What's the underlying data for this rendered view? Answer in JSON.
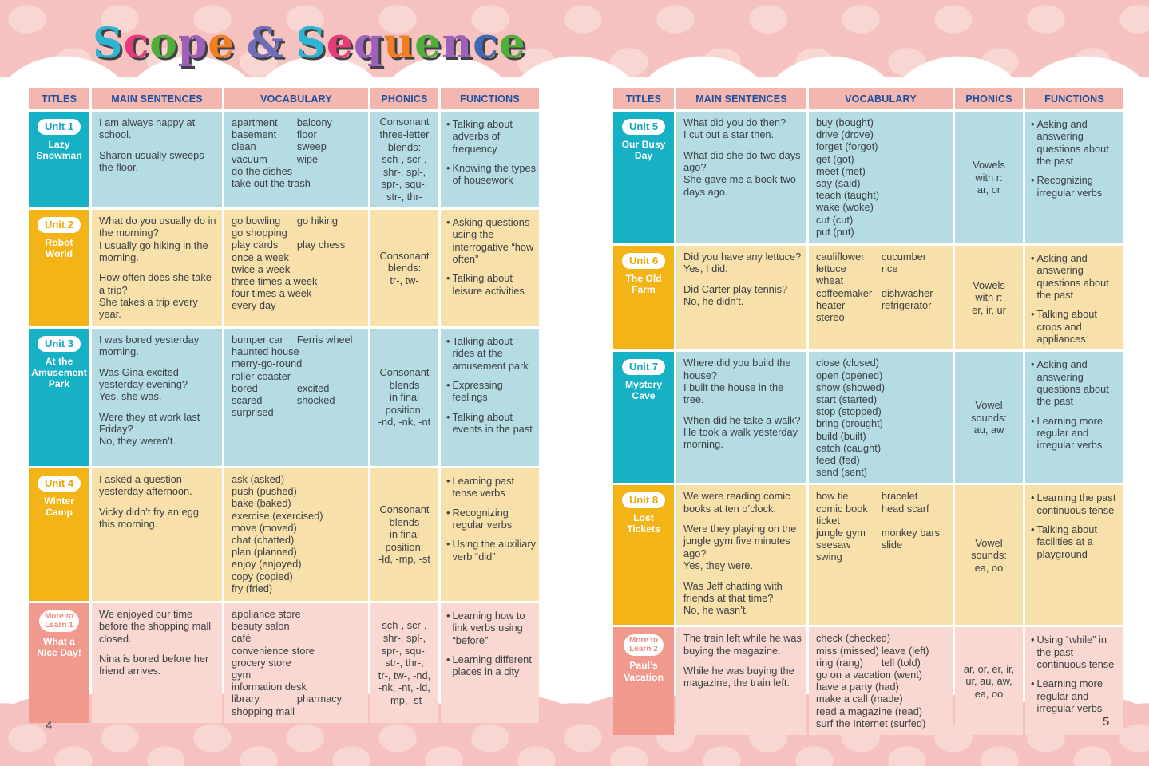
{
  "page_title": {
    "text": "Scope & Sequence",
    "letters": [
      {
        "ch": "S",
        "color": "#2db4d3"
      },
      {
        "ch": "c",
        "color": "#e73a78"
      },
      {
        "ch": "o",
        "color": "#4fae3c"
      },
      {
        "ch": "p",
        "color": "#9c61b8"
      },
      {
        "ch": "e",
        "color": "#f07f23"
      },
      {
        "ch": " "
      },
      {
        "ch": "&",
        "color": "#6f6db8"
      },
      {
        "ch": " "
      },
      {
        "ch": "S",
        "color": "#2db4d3"
      },
      {
        "ch": "e",
        "color": "#e73a78"
      },
      {
        "ch": "q",
        "color": "#9c61b8"
      },
      {
        "ch": "u",
        "color": "#f07f23"
      },
      {
        "ch": "e",
        "color": "#4fae3c"
      },
      {
        "ch": "n",
        "color": "#9c61b8"
      },
      {
        "ch": "c",
        "color": "#3c6ab4"
      },
      {
        "ch": "e",
        "color": "#4fae3c"
      }
    ]
  },
  "palette": {
    "background_pink": "#f5c2c0",
    "dot_pink": "#f8d6d2",
    "header_bg": "#f4b7b0",
    "header_text": "#1d4e9e",
    "teal": "#17b1c5",
    "teal_light": "#b5dbe3",
    "gold": "#f3b418",
    "gold_light": "#f8e0ab",
    "salmon": "#f2998e",
    "salmon_light": "#f8d8d0",
    "body_text": "#3c4043"
  },
  "pages": [
    {
      "page_number": "4",
      "column_headers": [
        "TITLES",
        "MAIN SENTENCES",
        "VOCABULARY",
        "PHONICS",
        "FUNCTIONS"
      ],
      "rows": [
        {
          "unit_label": "Unit 1",
          "unit_title": "Lazy\nSnowman",
          "theme": "teal",
          "min_height": 120,
          "main_sentences": [
            [
              "I am always happy at school."
            ],
            [
              "Sharon usually sweeps the floor."
            ]
          ],
          "vocabulary": [
            [
              "apartment",
              "balcony"
            ],
            [
              "basement",
              "floor"
            ],
            [
              "clean",
              "sweep"
            ],
            [
              "vacuum",
              "wipe"
            ],
            [
              "do the dishes"
            ],
            [
              "take out the trash"
            ]
          ],
          "phonics": "Consonant\nthree-letter\nblends:\nsch-, scr-,\nshr-, spl-,\nspr-, squ-,\nstr-, thr-",
          "functions": [
            "Talking about adverbs of frequency",
            "Knowing the types of housework"
          ]
        },
        {
          "unit_label": "Unit 2",
          "unit_title": "Robot\nWorld",
          "theme": "gold",
          "min_height": 146,
          "main_sentences": [
            [
              "What do you usually do in the morning?",
              "I usually go hiking in the morning."
            ],
            [
              "How often does she take a trip?",
              "She takes a trip every year."
            ]
          ],
          "vocabulary": [
            [
              "go bowling",
              "go hiking"
            ],
            [
              "go shopping"
            ],
            [
              "play cards",
              "play chess"
            ],
            [
              "once a week"
            ],
            [
              "twice a week"
            ],
            [
              "three times a week"
            ],
            [
              "four times a week"
            ],
            [
              "every day"
            ]
          ],
          "phonics": "Consonant\nblends:\ntr-, tw-",
          "functions": [
            "Asking questions using the interrogative “how often”",
            "Talking about leisure activities"
          ]
        },
        {
          "unit_label": "Unit 3",
          "unit_title": "At the\nAmusement\nPark",
          "theme": "teal",
          "min_height": 172,
          "main_sentences": [
            [
              "I was bored yesterday morning."
            ],
            [
              "Was Gina excited yesterday evening?",
              "Yes, she was."
            ],
            [
              "Were they at work last Friday?",
              "No, they weren’t."
            ]
          ],
          "vocabulary": [
            [
              "bumper car",
              "Ferris wheel"
            ],
            [
              "haunted house"
            ],
            [
              "merry-go-round"
            ],
            [
              "roller coaster"
            ],
            [
              "bored",
              "excited"
            ],
            [
              "scared",
              "shocked"
            ],
            [
              "surprised"
            ]
          ],
          "phonics": "Consonant\nblends\nin final\nposition:\n-nd, -nk, -nt",
          "functions": [
            "Talking about rides at the amusement park",
            "Expressing feelings",
            "Talking about events in the past"
          ]
        },
        {
          "unit_label": "Unit 4",
          "unit_title": "Winter\nCamp",
          "theme": "gold",
          "min_height": 166,
          "main_sentences": [
            [
              "I asked a question yesterday afternoon."
            ],
            [
              "Vicky didn’t fry an egg this morning."
            ]
          ],
          "vocabulary": [
            [
              "ask (asked)"
            ],
            [
              "push (pushed)"
            ],
            [
              "bake (baked)"
            ],
            [
              "exercise (exercised)"
            ],
            [
              "move (moved)"
            ],
            [
              "chat (chatted)"
            ],
            [
              "plan (planned)"
            ],
            [
              "enjoy (enjoyed)"
            ],
            [
              "copy (copied)"
            ],
            [
              "fry (fried)"
            ]
          ],
          "phonics": "Consonant\nblends\nin final\nposition:\n-ld, -mp, -st",
          "functions": [
            "Learning past tense verbs",
            "Recognizing regular verbs",
            "Using the auxiliary verb “did”"
          ]
        },
        {
          "unit_label": "More to\nLearn 1",
          "unit_title": "What a\nNice Day!",
          "theme": "salmon",
          "min_height": 150,
          "main_sentences": [
            [
              "We enjoyed our time before the shopping mall closed."
            ],
            [
              "Nina is bored before her friend arrives."
            ]
          ],
          "vocabulary": [
            [
              "appliance store"
            ],
            [
              "beauty salon"
            ],
            [
              "café"
            ],
            [
              "convenience store"
            ],
            [
              "grocery store"
            ],
            [
              "gym"
            ],
            [
              "information desk"
            ],
            [
              "library",
              "pharmacy"
            ],
            [
              "shopping mall"
            ]
          ],
          "phonics": "sch-, scr-,\nshr-, spl-,\nspr-, squ-,\nstr-, thr-,\ntr-, tw-, -nd,\n-nk, -nt, -ld,\n-mp, -st",
          "functions": [
            "Learning how to link verbs using “before”",
            "Learning different places in a city"
          ]
        }
      ]
    },
    {
      "page_number": "5",
      "column_headers": [
        "TITLES",
        "MAIN SENTENCES",
        "VOCABULARY",
        "PHONICS",
        "FUNCTIONS"
      ],
      "rows": [
        {
          "unit_label": "Unit 5",
          "unit_title": "Our Busy\nDay",
          "theme": "teal",
          "min_height": 165,
          "main_sentences": [
            [
              "What did you do then?",
              "I cut out a star then."
            ],
            [
              "What did she do two days ago?",
              "She gave me a book two days ago."
            ]
          ],
          "vocabulary": [
            [
              "buy (bought)"
            ],
            [
              "drive (drove)"
            ],
            [
              "forget (forgot)"
            ],
            [
              "get (got)"
            ],
            [
              "meet (met)"
            ],
            [
              "say (said)"
            ],
            [
              "teach (taught)"
            ],
            [
              "wake (woke)"
            ],
            [
              "cut (cut)"
            ],
            [
              "put (put)"
            ]
          ],
          "phonics": "Vowels\nwith r:\nar, or",
          "functions": [
            "Asking and answering questions about the past",
            "Recognizing irregular verbs"
          ]
        },
        {
          "unit_label": "Unit 6",
          "unit_title": "The Old\nFarm",
          "theme": "gold",
          "min_height": 124,
          "main_sentences": [
            [
              "Did you have any lettuce?",
              "Yes, I did."
            ],
            [
              "Did Carter play tennis?",
              "No, he didn’t."
            ]
          ],
          "vocabulary": [
            [
              "cauliflower",
              "cucumber"
            ],
            [
              "lettuce",
              "rice"
            ],
            [
              "wheat"
            ],
            [
              "coffeemaker",
              "dishwasher"
            ],
            [
              "heater",
              "refrigerator"
            ],
            [
              "stereo"
            ]
          ],
          "phonics": "Vowels\nwith r:\ner, ir, ur",
          "functions": [
            "Asking and answering questions about the past",
            "Talking about crops and appliances"
          ]
        },
        {
          "unit_label": "Unit 7",
          "unit_title": "Mystery\nCave",
          "theme": "teal",
          "min_height": 155,
          "main_sentences": [
            [
              "Where did you build the house?",
              "I built the house in the tree."
            ],
            [
              "When did he take a walk?",
              "He took a walk yesterday morning."
            ]
          ],
          "vocabulary": [
            [
              "close (closed)"
            ],
            [
              "open (opened)"
            ],
            [
              "show (showed)"
            ],
            [
              "start (started)"
            ],
            [
              "stop (stopped)"
            ],
            [
              "bring (brought)"
            ],
            [
              "build (built)"
            ],
            [
              "catch (caught)"
            ],
            [
              "feed (fed)"
            ],
            [
              "send (sent)"
            ]
          ],
          "phonics": "Vowel\nsounds:\nau, aw",
          "functions": [
            "Asking and answering questions about the past",
            "Learning more regular and irregular verbs"
          ]
        },
        {
          "unit_label": "Unit 8",
          "unit_title": "Lost\nTickets",
          "theme": "gold",
          "min_height": 175,
          "main_sentences": [
            [
              "We were reading comic books at ten o’clock."
            ],
            [
              "Were they playing on the jungle gym five minutes ago?",
              "Yes, they were."
            ],
            [
              "Was Jeff chatting with friends at that time?",
              "No, he wasn’t."
            ]
          ],
          "vocabulary": [
            [
              "bow tie",
              "bracelet"
            ],
            [
              "comic book",
              "head scarf"
            ],
            [
              "ticket"
            ],
            [
              "jungle gym",
              "monkey bars"
            ],
            [
              "seesaw",
              "slide"
            ],
            [
              "swing"
            ]
          ],
          "phonics": "Vowel\nsounds:\nea, oo",
          "functions": [
            "Learning the past continuous tense",
            "Talking about facilities at a playground"
          ]
        },
        {
          "unit_label": "More to\nLearn 2",
          "unit_title": "Paul’s\nVacation",
          "theme": "salmon",
          "min_height": 135,
          "main_sentences": [
            [
              "The train left while he was buying the magazine."
            ],
            [
              "While he was buying the magazine, the train left."
            ]
          ],
          "vocabulary": [
            [
              "check (checked)"
            ],
            [
              "miss (missed)",
              "leave (left)"
            ],
            [
              "ring (rang)",
              "tell (told)"
            ],
            [
              "go on a vacation (went)"
            ],
            [
              "have a party (had)"
            ],
            [
              "make a call (made)"
            ],
            [
              "read a magazine (read)"
            ],
            [
              "surf the Internet (surfed)"
            ]
          ],
          "phonics": "ar, or, er, ir,\nur, au, aw,\nea, oo",
          "functions": [
            "Using “while” in the past continuous tense",
            "Learning more regular and irregular verbs"
          ]
        }
      ]
    }
  ]
}
